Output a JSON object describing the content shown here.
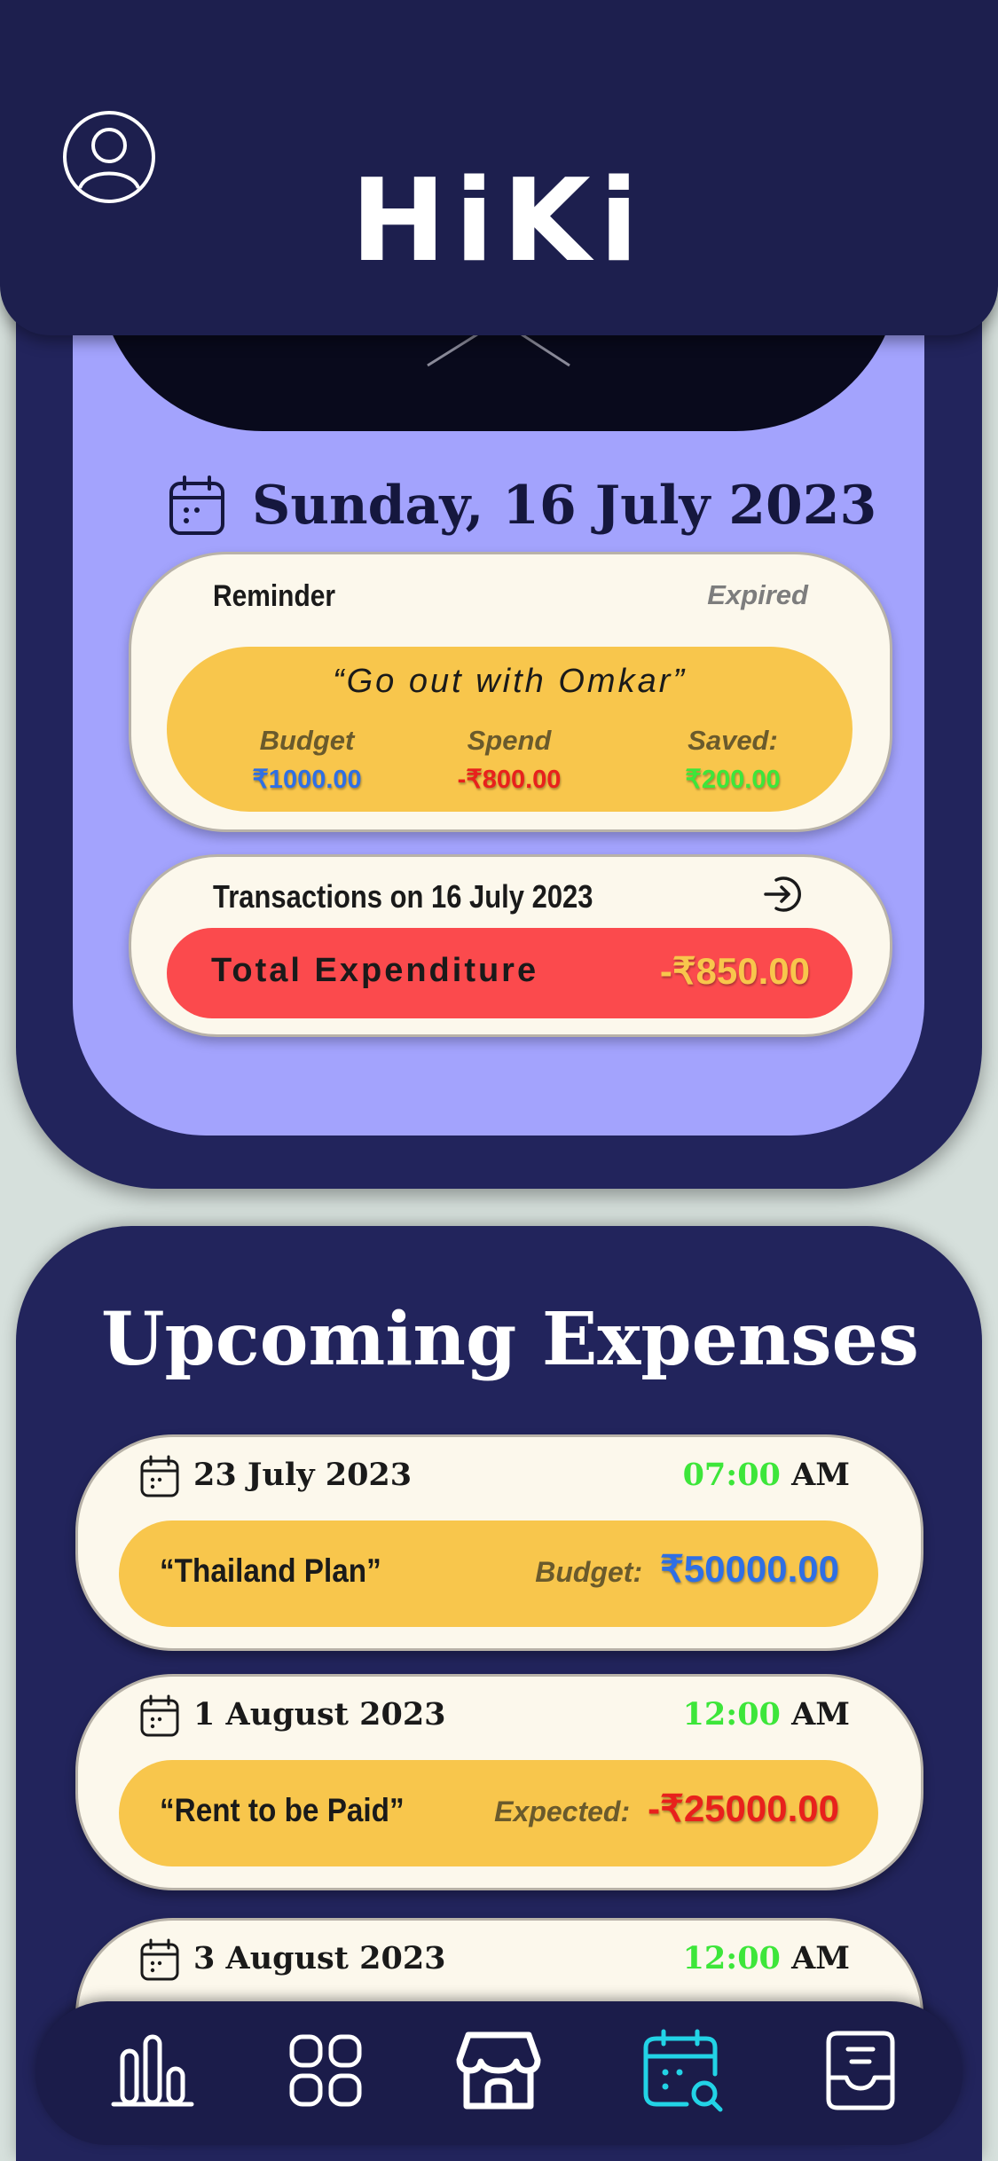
{
  "header": {
    "app_title": "HiKi",
    "profile_icon": "user-circle-icon"
  },
  "today": {
    "date": "Sunday, 16 July 2023",
    "icon": "calendar-icon"
  },
  "reminder": {
    "label": "Reminder",
    "status": "Expired",
    "title": "“Go out with Omkar”",
    "stats": [
      {
        "label": "Budget",
        "value": "₹1000.00",
        "color": "#2f6fe4"
      },
      {
        "label": "Spend",
        "value": "-₹800.00",
        "color": "#e8211c"
      },
      {
        "label": "Saved:",
        "value": "₹200.00",
        "color": "#3de63a"
      }
    ]
  },
  "transactions": {
    "title": "Transactions on 16 July 2023",
    "icon": "arrow-right-circle-icon",
    "total_label": "Total Expenditure",
    "total_value": "-₹850.00"
  },
  "upcoming": {
    "title": "Upcoming Expenses",
    "items": [
      {
        "date": "23 July 2023",
        "time": "07:00",
        "ampm": "AM",
        "name": "“Thailand Plan”",
        "amount_label": "Budget:",
        "amount": "₹50000.00",
        "amount_color": "#2f6fe4"
      },
      {
        "date": "1 August 2023",
        "time": "12:00",
        "ampm": "AM",
        "name": "“Rent to be Paid”",
        "amount_label": "Expected:",
        "amount": "-₹25000.00",
        "amount_color": "#e8211c"
      },
      {
        "date": "3 August 2023",
        "time": "12:00",
        "ampm": "AM"
      }
    ]
  },
  "nav": {
    "items": [
      {
        "icon": "bar-chart-icon",
        "active": false
      },
      {
        "icon": "grid-icon",
        "active": false
      },
      {
        "icon": "store-icon",
        "active": false
      },
      {
        "icon": "calendar-search-icon",
        "active": true
      },
      {
        "icon": "inbox-icon",
        "active": false
      }
    ],
    "active_color": "#22d3e6"
  }
}
